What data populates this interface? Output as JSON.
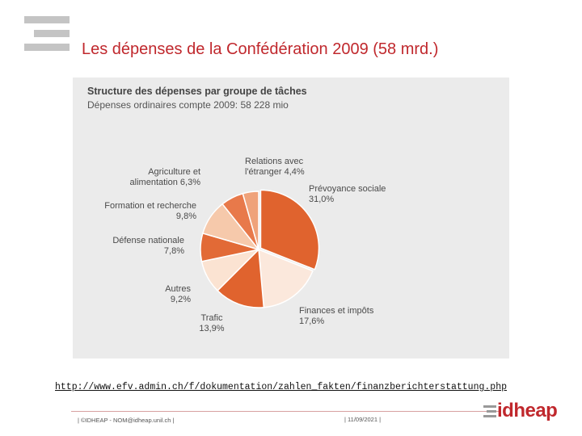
{
  "slide": {
    "title": "Les dépenses de la Confédération 2009 (58 mrd.)",
    "source_url": "http://www.efv.admin.ch/f/dokumentation/zahlen_fakten/finanzberichterstattung.php",
    "footer_left": "| ©IDHEAP - NOM@idheap.unil.ch |",
    "footer_date": "| 11/09/2021 |",
    "brand": "idheap"
  },
  "chart_data": {
    "type": "pie",
    "title": "Structure des dépenses par groupe de tâches",
    "subtitle": "Dépenses ordinaires compte 2009: 58 228 mio",
    "slices": [
      {
        "label_lines": [
          "Prévoyance sociale",
          "31,0%"
        ],
        "value": 31.0,
        "color": "#e0632e"
      },
      {
        "label_lines": [
          "Finances et impôts",
          "17,6%"
        ],
        "value": 17.6,
        "color": "#fbe8dc"
      },
      {
        "label_lines": [
          "Trafic",
          "13,9%"
        ],
        "value": 13.9,
        "color": "#e0632e"
      },
      {
        "label_lines": [
          "Autres",
          "9,2%"
        ],
        "value": 9.2,
        "color": "#fbe3d2"
      },
      {
        "label_lines": [
          "Défense nationale",
          "7,8%"
        ],
        "value": 7.8,
        "color": "#e26a36"
      },
      {
        "label_lines": [
          "Formation et recherche",
          "9,8%"
        ],
        "value": 9.8,
        "color": "#f6c9ab"
      },
      {
        "label_lines": [
          "Agriculture et",
          "alimentation 6,3%"
        ],
        "value": 6.3,
        "color": "#e8794a"
      },
      {
        "label_lines": [
          "Relations avec",
          "l'étranger 4,4%"
        ],
        "value": 4.4,
        "color": "#efa27a"
      }
    ]
  }
}
